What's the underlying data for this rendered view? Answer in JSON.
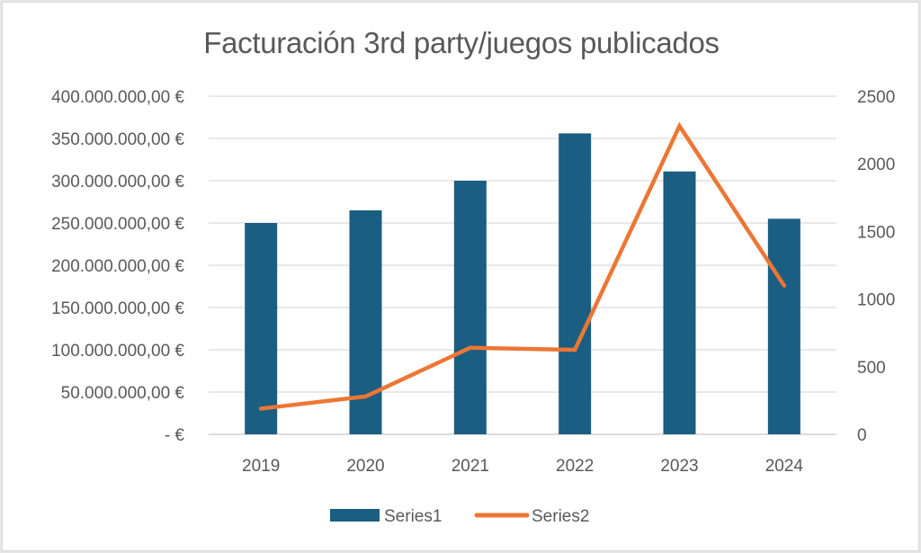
{
  "chart_data": {
    "type": "bar+line",
    "title": "Facturación 3rd party/juegos publicados",
    "categories": [
      "2019",
      "2020",
      "2021",
      "2022",
      "2023",
      "2024"
    ],
    "series": [
      {
        "name": "Series1",
        "type": "bar",
        "axis": "left",
        "color": "#1a5e82",
        "values": [
          250000000,
          265000000,
          300000000,
          356000000,
          311000000,
          255000000
        ]
      },
      {
        "name": "Series2",
        "type": "line",
        "axis": "right",
        "color": "#ed7634",
        "values": [
          190,
          280,
          640,
          625,
          2280,
          1100
        ]
      }
    ],
    "left_axis": {
      "ylim": [
        0,
        400000000
      ],
      "tick_labels": [
        "-  €",
        "50.000.000,00 €",
        "100.000.000,00 €",
        "150.000.000,00 €",
        "200.000.000,00 €",
        "250.000.000,00 €",
        "300.000.000,00 €",
        "350.000.000,00 €",
        "400.000.000,00 €"
      ]
    },
    "right_axis": {
      "ylim": [
        0,
        2500
      ],
      "tick_labels": [
        "0",
        "500",
        "1000",
        "1500",
        "2000",
        "2500"
      ]
    },
    "grid": true,
    "legend": {
      "position": "bottom",
      "entries": [
        "Series1",
        "Series2"
      ]
    },
    "xlabel": "",
    "ylabel": ""
  }
}
